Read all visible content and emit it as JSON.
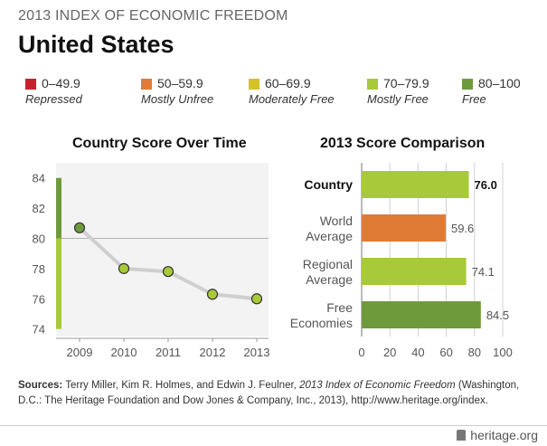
{
  "header": {
    "index_title": "2013 INDEX OF ECONOMIC FREEDOM",
    "country": "United States"
  },
  "legend": [
    {
      "range": "0–49.9",
      "label": "Repressed",
      "color": "#c8202f"
    },
    {
      "range": "50–59.9",
      "label": "Mostly Unfree",
      "color": "#e07b36"
    },
    {
      "range": "60–69.9",
      "label": "Moderately Free",
      "color": "#d5c12b"
    },
    {
      "range": "70–79.9",
      "label": "Mostly Free",
      "color": "#a8c93a"
    },
    {
      "range": "80–100",
      "label": "Free",
      "color": "#6f9a3c"
    }
  ],
  "chart_data": [
    {
      "type": "line",
      "title": "Country Score Over Time",
      "x": [
        "2009",
        "2010",
        "2011",
        "2012",
        "2013"
      ],
      "values": [
        80.7,
        78.0,
        77.8,
        76.3,
        76.0
      ],
      "ylim": [
        73.5,
        85
      ],
      "yticks": [
        74,
        76,
        78,
        80,
        82,
        84
      ]
    },
    {
      "type": "bar",
      "title": "2013 Score Comparison",
      "categories": [
        "Country",
        "World Average",
        "Regional Average",
        "Free Economies"
      ],
      "values": [
        76.0,
        59.6,
        74.1,
        84.5
      ],
      "value_labels": [
        "76.0",
        "59.6",
        "74.1",
        "84.5"
      ],
      "xlim": [
        0,
        100
      ],
      "xticks": [
        0,
        20,
        40,
        60,
        80,
        100
      ]
    }
  ],
  "sources": {
    "label": "Sources:",
    "text": "Terry Miller, Kim R. Holmes, and Edwin J. Feulner,",
    "book": "2013 Index of Economic Freedom",
    "rest": "(Washington, D.C.: The Heritage Foundation and Dow Jones & Company, Inc., 2013), http://www.heritage.org/index."
  },
  "brand": "heritage.org"
}
